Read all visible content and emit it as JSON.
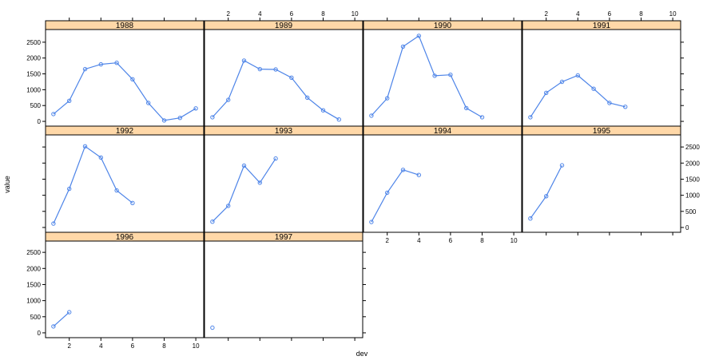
{
  "chart_data": {
    "type": "line",
    "layout": "lattice",
    "xlabel": "dev",
    "ylabel": "value",
    "xlim": [
      0.5,
      10.5
    ],
    "ylim": [
      -150,
      2900
    ],
    "x_ticks": [
      2,
      4,
      6,
      8,
      10
    ],
    "y_ticks": [
      0,
      500,
      1000,
      1500,
      2000,
      2500
    ],
    "grid": false,
    "colors": {
      "line": "#4d84e8",
      "strip": "#ffd8a8",
      "frame": "#000000"
    },
    "panels": [
      {
        "name": "1988",
        "x": [
          1,
          2,
          3,
          4,
          5,
          6,
          7,
          8,
          9,
          10
        ],
        "values": [
          230,
          650,
          1650,
          1800,
          1850,
          1330,
          580,
          30,
          110,
          410
        ]
      },
      {
        "name": "1989",
        "x": [
          1,
          2,
          3,
          4,
          5,
          6,
          7,
          8,
          9
        ],
        "values": [
          130,
          680,
          1920,
          1650,
          1640,
          1380,
          750,
          350,
          60
        ]
      },
      {
        "name": "1990",
        "x": [
          1,
          2,
          3,
          4,
          5,
          6,
          7,
          8
        ],
        "values": [
          180,
          730,
          2360,
          2700,
          1440,
          1470,
          420,
          130
        ]
      },
      {
        "name": "1991",
        "x": [
          1,
          2,
          3,
          4,
          5,
          6,
          7
        ],
        "values": [
          130,
          900,
          1250,
          1450,
          1030,
          580,
          460
        ]
      },
      {
        "name": "1992",
        "x": [
          1,
          2,
          3,
          4,
          5,
          6
        ],
        "values": [
          120,
          1200,
          2520,
          2170,
          1150,
          760
        ]
      },
      {
        "name": "1993",
        "x": [
          1,
          2,
          3,
          4,
          5
        ],
        "values": [
          180,
          670,
          1920,
          1390,
          2140
        ]
      },
      {
        "name": "1994",
        "x": [
          1,
          2,
          3,
          4
        ],
        "values": [
          170,
          1080,
          1790,
          1630
        ]
      },
      {
        "name": "1995",
        "x": [
          1,
          2,
          3
        ],
        "values": [
          280,
          970,
          1930
        ]
      },
      {
        "name": "1996",
        "x": [
          1,
          2
        ],
        "values": [
          200,
          640
        ]
      },
      {
        "name": "1997",
        "x": [
          1
        ],
        "values": [
          160
        ]
      }
    ]
  }
}
